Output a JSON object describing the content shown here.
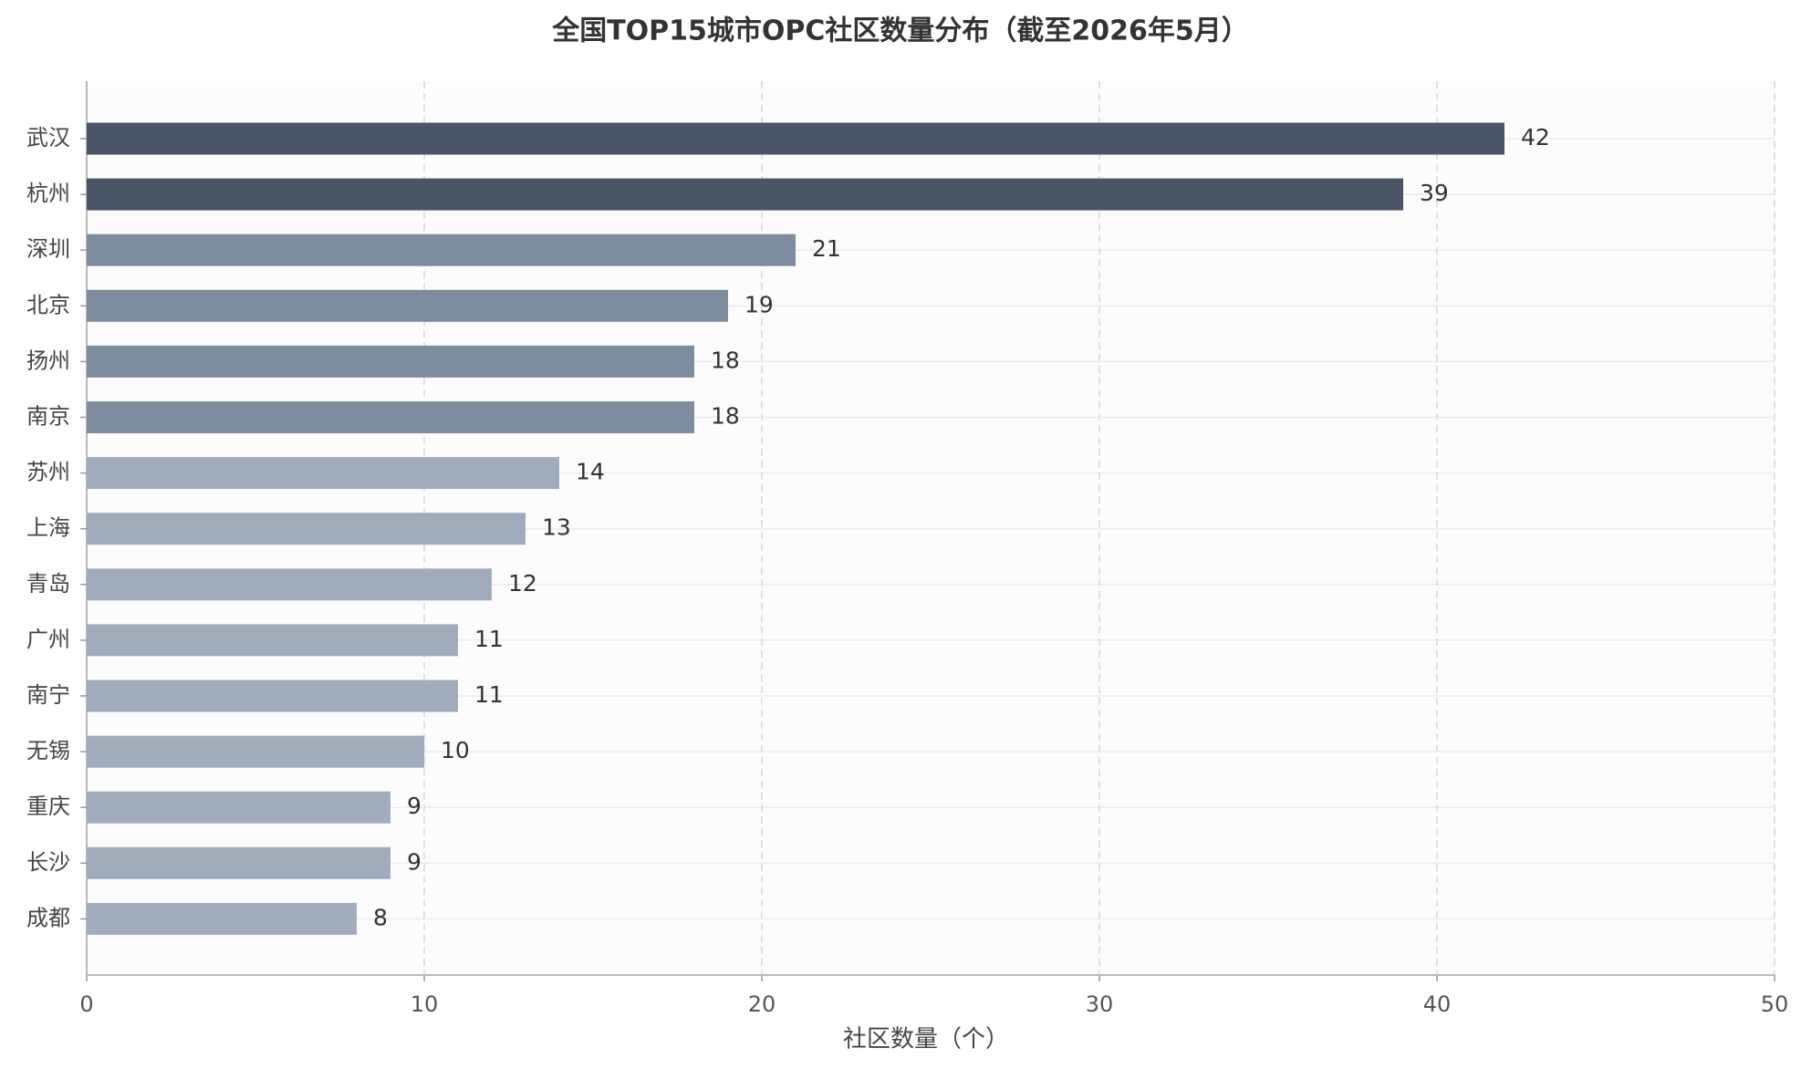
{
  "chart_data": {
    "type": "bar",
    "orientation": "horizontal",
    "title": "全国TOP15城市OPC社区数量分布（截至2026年5月）",
    "x_label": "社区数量（个）",
    "categories": [
      "武汉",
      "杭州",
      "深圳",
      "北京",
      "扬州",
      "南京",
      "苏州",
      "上海",
      "青岛",
      "广州",
      "南宁",
      "无锡",
      "重庆",
      "长沙",
      "成都"
    ],
    "values": [
      42,
      39,
      21,
      19,
      18,
      18,
      14,
      13,
      12,
      11,
      11,
      10,
      9,
      9,
      8
    ],
    "colors": [
      "#4a5568",
      "#4a5568",
      "#7d8c9e",
      "#7d8c9e",
      "#7d8c9e",
      "#7d8c9e",
      "#a0acbb",
      "#a0acbb",
      "#a0acbb",
      "#a0acbb",
      "#a0acbb",
      "#a0acbb",
      "#a0acbb",
      "#a0acbb",
      "#a0acbb"
    ],
    "xlim": [
      0,
      50
    ],
    "xticks": [
      0,
      10,
      20,
      30,
      40,
      50
    ],
    "grid": true
  }
}
